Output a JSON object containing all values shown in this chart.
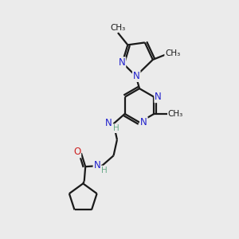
{
  "bg_color": "#ebebeb",
  "bond_color": "#1a1a1a",
  "N_color": "#2020cc",
  "NH_color": "#2020cc",
  "H_color": "#6aaa8a",
  "O_color": "#cc2222",
  "line_width": 1.6,
  "font_size": 8.5,
  "figsize": [
    3.0,
    3.0
  ],
  "dpi": 100,
  "xlim": [
    0,
    10
  ],
  "ylim": [
    0,
    10
  ]
}
